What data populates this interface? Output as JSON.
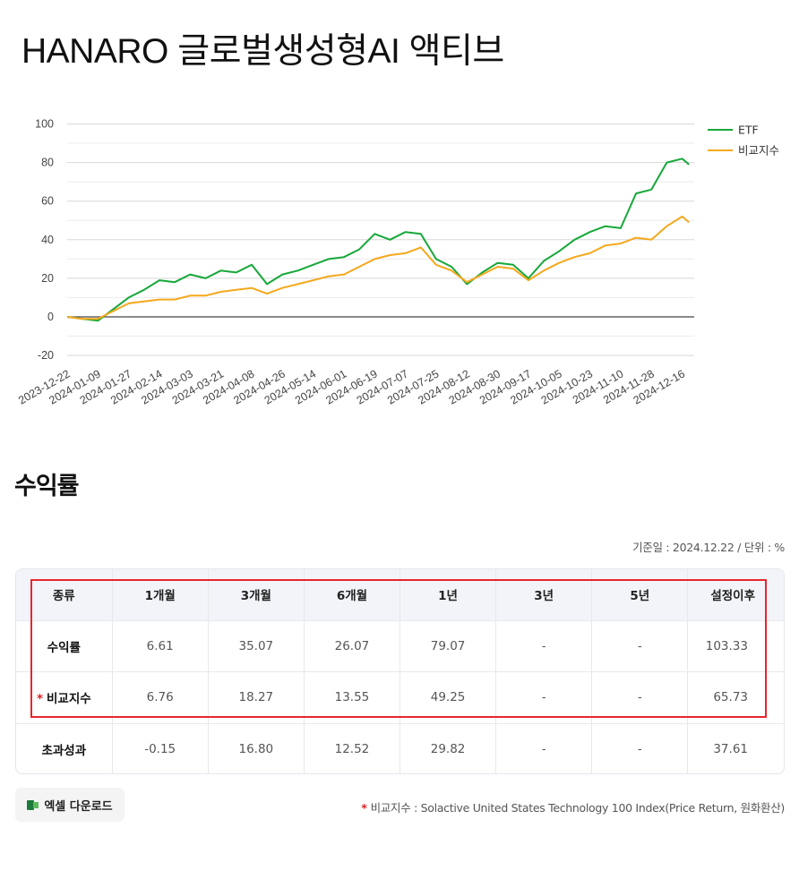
{
  "header": {
    "title": "HANARO 글로벌생성형AI 액티브"
  },
  "returns": {
    "section_title": "수익률",
    "base_date_text": "기준일 : 2024.12.22 / 단위 : %",
    "columns": [
      "종류",
      "1개월",
      "3개월",
      "6개월",
      "1년",
      "3년",
      "5년",
      "설정이후"
    ],
    "rows": [
      {
        "label": "수익률",
        "asterisk": false,
        "values": [
          "6.61",
          "35.07",
          "26.07",
          "79.07",
          "-",
          "-",
          "103.33"
        ]
      },
      {
        "label": "비교지수",
        "asterisk": true,
        "values": [
          "6.76",
          "18.27",
          "13.55",
          "49.25",
          "-",
          "-",
          "65.73"
        ]
      },
      {
        "label": "초과성과",
        "asterisk": false,
        "values": [
          "-0.15",
          "16.80",
          "12.52",
          "29.82",
          "-",
          "-",
          "37.61"
        ]
      }
    ],
    "asterisk_mark": "*",
    "highlight_color": "#e8262d"
  },
  "footer": {
    "excel_button_label": "엑셀 다운로드",
    "excel_icon": "excel-icon",
    "footnote_mark": "*",
    "footnote_text": "비교지수 : Solactive United States Technology 100 Index(Price Return, 원화환산)"
  },
  "colors": {
    "etf": "#16a83a",
    "benchmark": "#f5a81c",
    "zero_line": "#444444",
    "grid": "#dddddd",
    "highlight": "#e8262d"
  },
  "chart_data": {
    "type": "line",
    "title": "",
    "xlabel": "",
    "ylabel": "",
    "ylim": [
      -20,
      100
    ],
    "yticks": [
      100,
      80,
      60,
      40,
      20,
      0,
      -20
    ],
    "grid": true,
    "legend_position": "right-top",
    "x_tick_labels": [
      "2023-12-22",
      "2024-01-09",
      "2024-01-27",
      "2024-02-14",
      "2024-03-03",
      "2024-03-21",
      "2024-04-08",
      "2024-04-26",
      "2024-05-14",
      "2024-06-01",
      "2024-06-19",
      "2024-07-07",
      "2024-07-25",
      "2024-08-12",
      "2024-08-30",
      "2024-09-17",
      "2024-10-05",
      "2024-10-23",
      "2024-11-10",
      "2024-11-28",
      "2024-12-16"
    ],
    "x": [
      "2023-12-22",
      "2023-12-31",
      "2024-01-09",
      "2024-01-18",
      "2024-01-27",
      "2024-02-05",
      "2024-02-14",
      "2024-02-23",
      "2024-03-03",
      "2024-03-12",
      "2024-03-21",
      "2024-03-30",
      "2024-04-08",
      "2024-04-17",
      "2024-04-26",
      "2024-05-05",
      "2024-05-14",
      "2024-05-23",
      "2024-06-01",
      "2024-06-10",
      "2024-06-19",
      "2024-06-28",
      "2024-07-07",
      "2024-07-16",
      "2024-07-25",
      "2024-08-03",
      "2024-08-12",
      "2024-08-21",
      "2024-08-30",
      "2024-09-08",
      "2024-09-17",
      "2024-09-26",
      "2024-10-05",
      "2024-10-14",
      "2024-10-23",
      "2024-11-01",
      "2024-11-10",
      "2024-11-19",
      "2024-11-28",
      "2024-12-07",
      "2024-12-16",
      "2024-12-20"
    ],
    "series": [
      {
        "name": "ETF",
        "color": "#16a83a",
        "values": [
          0,
          -1,
          -2,
          4,
          10,
          14,
          19,
          18,
          22,
          20,
          24,
          23,
          27,
          17,
          22,
          24,
          27,
          30,
          31,
          35,
          43,
          40,
          44,
          43,
          30,
          26,
          17,
          23,
          28,
          27,
          20,
          29,
          34,
          40,
          44,
          47,
          46,
          64,
          66,
          80,
          82,
          79
        ]
      },
      {
        "name": "비교지수",
        "color": "#f5a81c",
        "values": [
          0,
          -1,
          -1,
          3,
          7,
          8,
          9,
          9,
          11,
          11,
          13,
          14,
          15,
          12,
          15,
          17,
          19,
          21,
          22,
          26,
          30,
          32,
          33,
          36,
          27,
          24,
          18,
          22,
          26,
          25,
          19,
          24,
          28,
          31,
          33,
          37,
          38,
          41,
          40,
          47,
          52,
          49
        ]
      }
    ]
  }
}
